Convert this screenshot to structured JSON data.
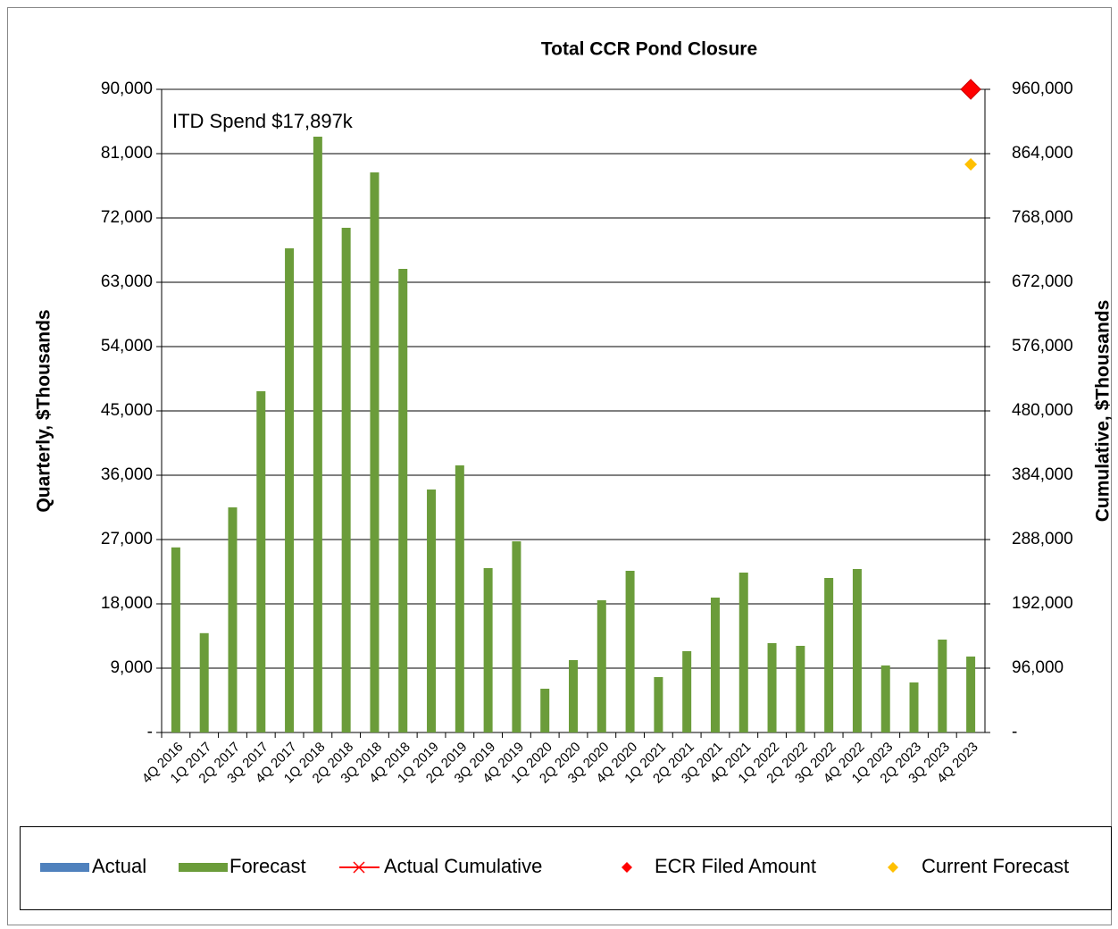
{
  "chart_data": {
    "type": "bar",
    "title": "Total CCR Pond Closure",
    "y_label": "Quarterly, $Thousands",
    "y2_label": "Cumulative, $Thousands",
    "annotation": "ITD Spend  $17,897k",
    "categories": [
      "4Q 2016",
      "1Q 2017",
      "2Q 2017",
      "3Q 2017",
      "4Q 2017",
      "1Q 2018",
      "2Q 2018",
      "3Q 2018",
      "4Q 2018",
      "1Q 2019",
      "2Q 2019",
      "3Q 2019",
      "4Q 2019",
      "1Q 2020",
      "2Q 2020",
      "3Q 2020",
      "4Q 2020",
      "1Q 2021",
      "2Q 2021",
      "3Q 2021",
      "4Q 2021",
      "1Q 2022",
      "2Q 2022",
      "3Q 2022",
      "4Q 2022",
      "1Q 2023",
      "2Q 2023",
      "3Q 2023",
      "4Q 2023"
    ],
    "series": [
      {
        "name": "Actual",
        "color": "#4f81bd",
        "style": "bar",
        "values": [
          null,
          null,
          null,
          null,
          null,
          null,
          null,
          null,
          null,
          null,
          null,
          null,
          null,
          null,
          null,
          null,
          null,
          null,
          null,
          null,
          null,
          null,
          null,
          null,
          null,
          null,
          null,
          null,
          null
        ]
      },
      {
        "name": "Forecast",
        "color": "#6b9c3a",
        "style": "bar",
        "values": [
          25900,
          13900,
          31500,
          47750,
          67750,
          83375,
          70625,
          78375,
          64875,
          34000,
          37375,
          23000,
          26750,
          6125,
          10125,
          18500,
          22625,
          7750,
          11375,
          18875,
          22375,
          12500,
          12125,
          21625,
          22875,
          9375,
          7000,
          13000,
          10625
        ]
      },
      {
        "name": "Actual Cumulative",
        "color": "#ff0000",
        "style": "line",
        "axis": "y2",
        "values": [
          null,
          null,
          null,
          null,
          null,
          null,
          null,
          null,
          null,
          null,
          null,
          null,
          null,
          null,
          null,
          null,
          null,
          null,
          null,
          null,
          null,
          null,
          null,
          null,
          null,
          null,
          null,
          null,
          null
        ]
      },
      {
        "name": "ECR Filed Amount",
        "color": "#ff0000",
        "style": "point",
        "axis": "y2",
        "values": [
          null,
          null,
          null,
          null,
          null,
          null,
          null,
          null,
          null,
          null,
          null,
          null,
          null,
          null,
          null,
          null,
          null,
          null,
          null,
          null,
          null,
          null,
          null,
          null,
          null,
          null,
          null,
          null,
          960000
        ]
      },
      {
        "name": "Current Forecast",
        "color": "#ffc000",
        "style": "point",
        "axis": "y2",
        "values": [
          null,
          null,
          null,
          null,
          null,
          null,
          null,
          null,
          null,
          null,
          null,
          null,
          null,
          null,
          null,
          null,
          null,
          null,
          null,
          null,
          null,
          null,
          null,
          null,
          null,
          null,
          null,
          null,
          848000
        ]
      }
    ],
    "ylim": [
      0,
      90000
    ],
    "yticks": [
      {
        "value": 0,
        "label": "-"
      },
      {
        "value": 9000,
        "label": "9,000"
      },
      {
        "value": 18000,
        "label": "18,000"
      },
      {
        "value": 27000,
        "label": "27,000"
      },
      {
        "value": 36000,
        "label": "36,000"
      },
      {
        "value": 45000,
        "label": "45,000"
      },
      {
        "value": 54000,
        "label": "54,000"
      },
      {
        "value": 63000,
        "label": "63,000"
      },
      {
        "value": 72000,
        "label": "72,000"
      },
      {
        "value": 81000,
        "label": "81,000"
      },
      {
        "value": 90000,
        "label": "90,000"
      }
    ],
    "y2lim": [
      0,
      960000
    ],
    "y2ticks": [
      {
        "value": 0,
        "label": "-"
      },
      {
        "value": 96000,
        "label": "96,000"
      },
      {
        "value": 192000,
        "label": "192,000"
      },
      {
        "value": 288000,
        "label": "288,000"
      },
      {
        "value": 384000,
        "label": "384,000"
      },
      {
        "value": 480000,
        "label": "480,000"
      },
      {
        "value": 576000,
        "label": "576,000"
      },
      {
        "value": 672000,
        "label": "672,000"
      },
      {
        "value": 768000,
        "label": "768,000"
      },
      {
        "value": 864000,
        "label": "864,000"
      },
      {
        "value": 960000,
        "label": "960,000"
      }
    ],
    "grid": true,
    "legend": "bottom"
  }
}
